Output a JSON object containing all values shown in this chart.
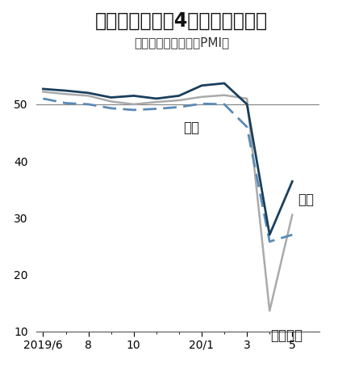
{
  "title": "過去最悪だった4月から上昇した",
  "subtitle": "（各国・地域の統合PMI）",
  "bg_color": "#ffffff",
  "ref_line": 50,
  "ylim": [
    10,
    58
  ],
  "yticks": [
    10,
    20,
    30,
    40,
    50
  ],
  "xtick_labels": [
    "2019/6",
    "8",
    "10",
    "20/1",
    "3",
    "5"
  ],
  "xtick_pos": [
    0,
    2,
    4,
    7,
    9,
    11
  ],
  "xlim": [
    -0.3,
    12.2
  ],
  "usa_x": [
    0,
    1,
    2,
    3,
    4,
    5,
    6,
    7,
    8,
    9,
    10,
    11
  ],
  "usa_y": [
    52.7,
    52.4,
    52.0,
    51.2,
    51.5,
    51.0,
    51.5,
    53.3,
    53.7,
    50.0,
    27.0,
    36.4
  ],
  "japan_x": [
    0,
    1,
    2,
    3,
    4,
    5,
    6,
    7,
    8,
    9,
    10,
    11
  ],
  "japan_y": [
    51.0,
    50.2,
    50.0,
    49.3,
    49.0,
    49.2,
    49.5,
    50.1,
    50.0,
    46.0,
    25.8,
    27.0
  ],
  "euro_x": [
    0,
    1,
    2,
    3,
    4,
    5,
    6,
    7,
    8,
    9,
    10,
    11
  ],
  "euro_y": [
    52.2,
    51.8,
    51.5,
    50.5,
    50.0,
    50.4,
    50.7,
    51.3,
    51.6,
    51.0,
    13.6,
    30.5
  ],
  "usa_color": "#1a3f5c",
  "japan_color": "#5a8ab5",
  "euro_color": "#aaaaaa",
  "usa_lw": 2.0,
  "japan_lw": 2.0,
  "euro_lw": 1.8,
  "label_japan": "日本",
  "label_usa": "米国",
  "label_euro": "ユーロ圏",
  "ann_japan_x": 6.2,
  "ann_japan_y": 47.2,
  "ann_usa_x": 11.25,
  "ann_usa_y": 34.5,
  "ann_euro_x": 10.05,
  "ann_euro_y": 10.5,
  "title_fontsize": 17,
  "subtitle_fontsize": 11,
  "tick_fontsize": 10,
  "ann_fontsize": 12
}
